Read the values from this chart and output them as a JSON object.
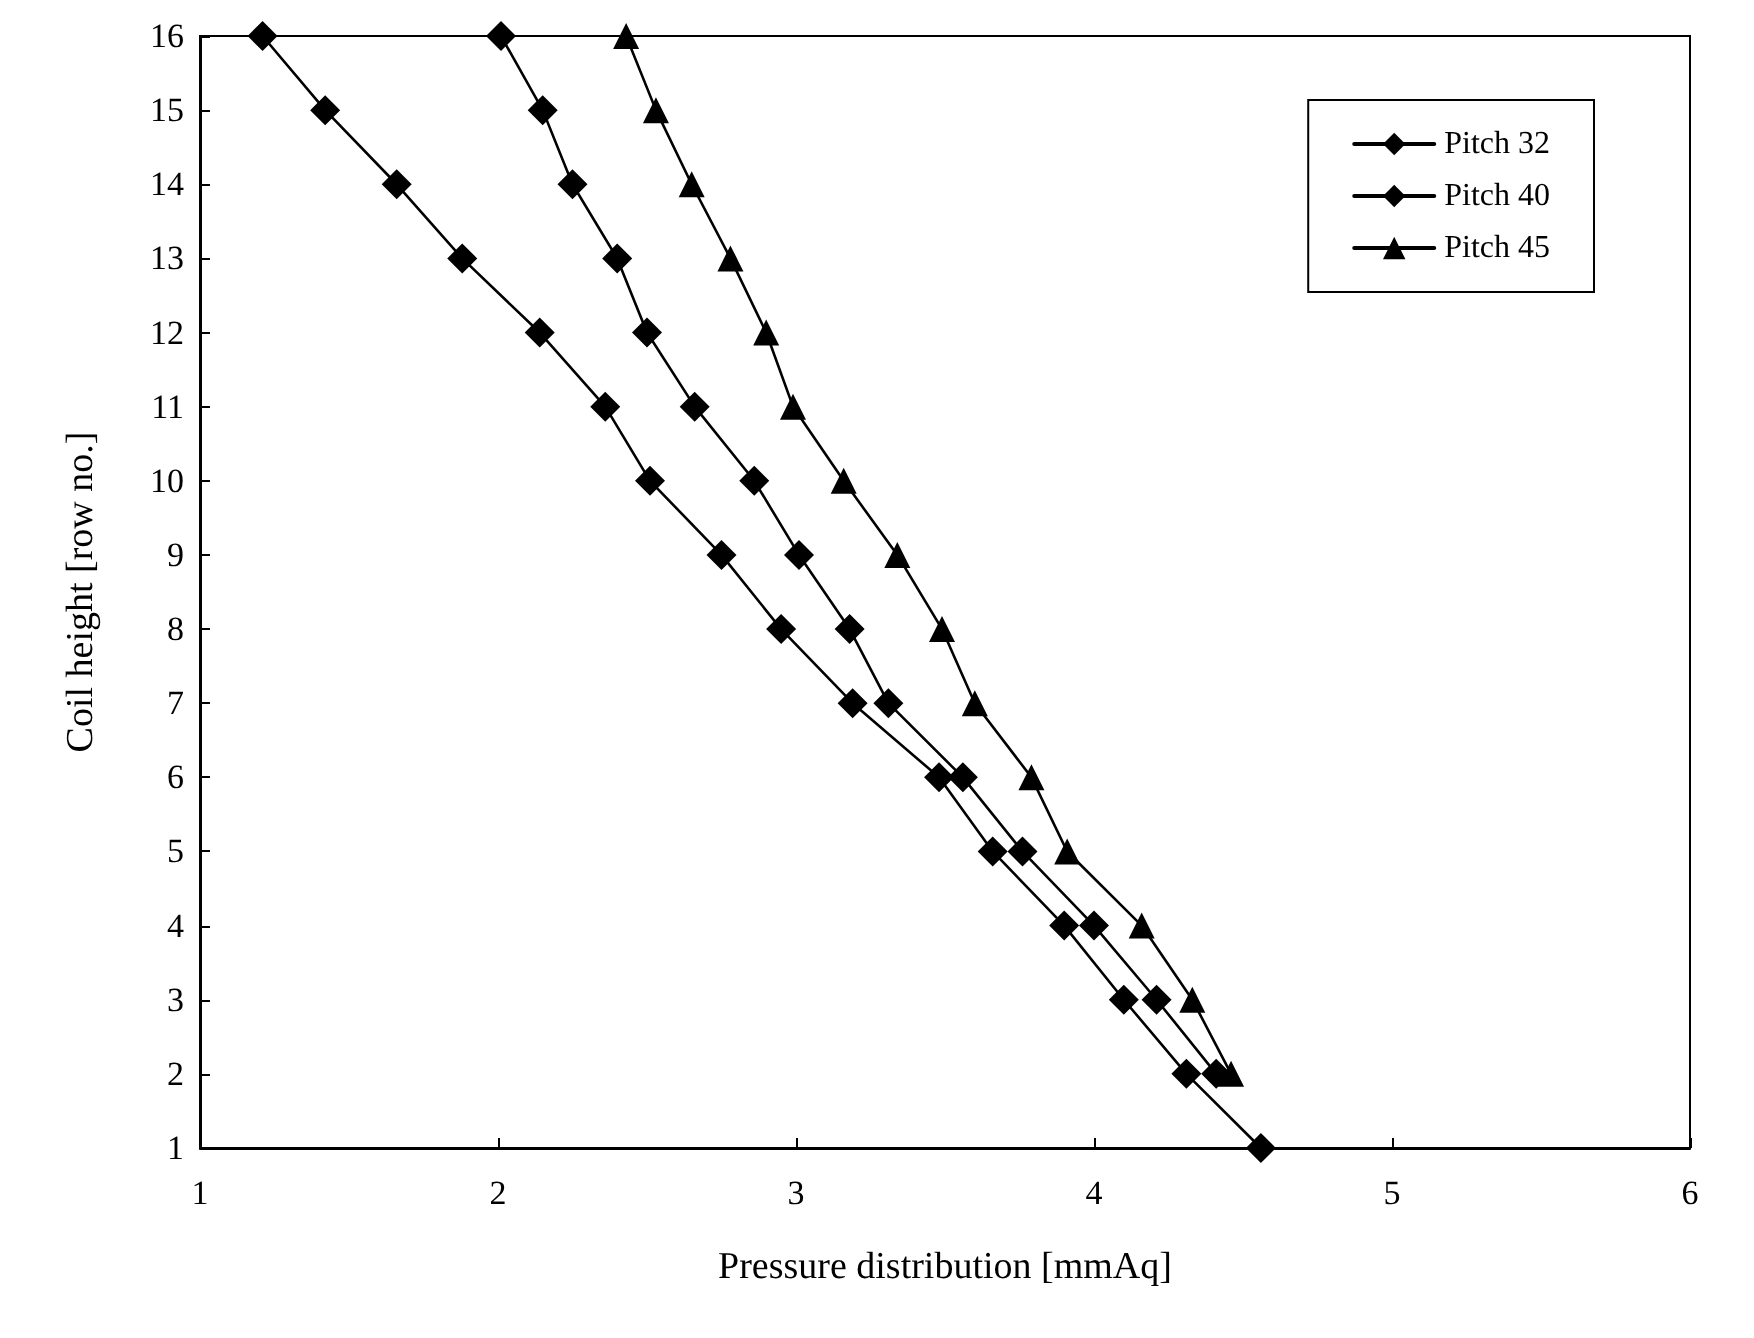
{
  "chart_data": {
    "type": "line",
    "xlabel": "Pressure distribution [mmAq]",
    "ylabel": "Coil height [row no.]",
    "xlim": [
      1,
      6
    ],
    "xticks": [
      1,
      2,
      3,
      4,
      5,
      6
    ],
    "ylim": [
      1,
      16
    ],
    "yticks": [
      1,
      2,
      3,
      4,
      5,
      6,
      7,
      8,
      9,
      10,
      11,
      12,
      13,
      14,
      15,
      16
    ],
    "grid": false,
    "legend": "top right",
    "line_style": "solid",
    "series": [
      {
        "name": "Pitch 32",
        "color": "#000000",
        "marker": "diamond",
        "x": [
          1.21,
          1.42,
          1.66,
          1.88,
          2.14,
          2.36,
          2.51,
          2.75,
          2.95,
          3.19,
          3.48,
          3.66,
          3.9,
          4.1,
          4.31,
          4.56
        ],
        "values": [
          16,
          15,
          14,
          13,
          12,
          11,
          10,
          9,
          8,
          7,
          6,
          5,
          4,
          3,
          2,
          1
        ]
      },
      {
        "name": "Pitch 40",
        "color": "#000000",
        "marker": "diamond",
        "x": [
          2.01,
          2.15,
          2.25,
          2.4,
          2.5,
          2.66,
          2.86,
          3.01,
          3.18,
          3.31,
          3.56,
          3.76,
          4.0,
          4.21,
          4.41
        ],
        "values": [
          16,
          15,
          14,
          13,
          12,
          11,
          10,
          9,
          8,
          7,
          6,
          5,
          4,
          3,
          2
        ]
      },
      {
        "name": "Pitch 45",
        "color": "#000000",
        "marker": "triangle",
        "x": [
          2.43,
          2.53,
          2.65,
          2.78,
          2.9,
          2.99,
          3.16,
          3.34,
          3.49,
          3.6,
          3.79,
          3.91,
          4.16,
          4.33,
          4.46
        ],
        "values": [
          16,
          15,
          14,
          13,
          12,
          11,
          10,
          9,
          8,
          7,
          6,
          5,
          4,
          3,
          2
        ]
      }
    ]
  }
}
